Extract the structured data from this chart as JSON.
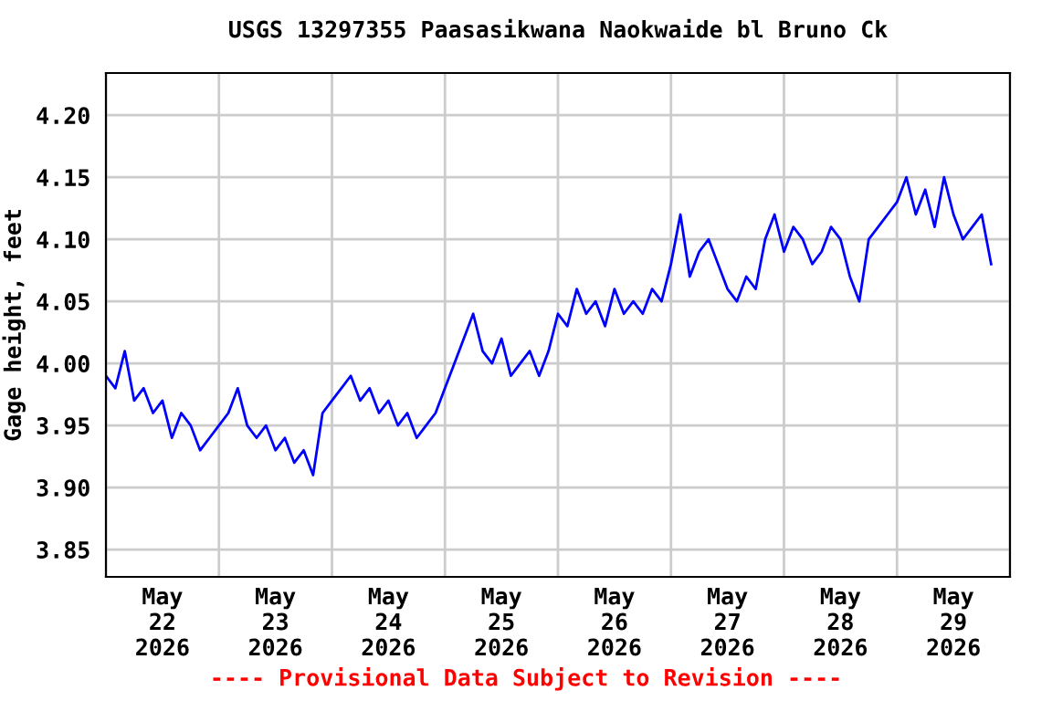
{
  "chart_data": {
    "type": "line",
    "title": "USGS 13297355 Paasasikwana Naokwaide bl Bruno Ck",
    "ylabel": "Gage height, feet",
    "annotations": [
      "---- Provisional Data Subject to Revision ----"
    ],
    "x": [
      "2026-05-22T00:00",
      "2026-05-22T02:00",
      "2026-05-22T04:00",
      "2026-05-22T06:00",
      "2026-05-22T08:00",
      "2026-05-22T10:00",
      "2026-05-22T12:00",
      "2026-05-22T14:00",
      "2026-05-22T16:00",
      "2026-05-22T18:00",
      "2026-05-22T20:00",
      "2026-05-22T22:00",
      "2026-05-23T00:00",
      "2026-05-23T02:00",
      "2026-05-23T04:00",
      "2026-05-23T06:00",
      "2026-05-23T08:00",
      "2026-05-23T10:00",
      "2026-05-23T12:00",
      "2026-05-23T14:00",
      "2026-05-23T16:00",
      "2026-05-23T18:00",
      "2026-05-23T20:00",
      "2026-05-23T22:00",
      "2026-05-24T00:00",
      "2026-05-24T02:00",
      "2026-05-24T04:00",
      "2026-05-24T06:00",
      "2026-05-24T08:00",
      "2026-05-24T10:00",
      "2026-05-24T12:00",
      "2026-05-24T14:00",
      "2026-05-24T16:00",
      "2026-05-24T18:00",
      "2026-05-24T20:00",
      "2026-05-24T22:00",
      "2026-05-25T00:00",
      "2026-05-25T02:00",
      "2026-05-25T04:00",
      "2026-05-25T06:00",
      "2026-05-25T08:00",
      "2026-05-25T10:00",
      "2026-05-25T12:00",
      "2026-05-25T14:00",
      "2026-05-25T16:00",
      "2026-05-25T18:00",
      "2026-05-25T20:00",
      "2026-05-25T22:00",
      "2026-05-26T00:00",
      "2026-05-26T02:00",
      "2026-05-26T04:00",
      "2026-05-26T06:00",
      "2026-05-26T08:00",
      "2026-05-26T10:00",
      "2026-05-26T12:00",
      "2026-05-26T14:00",
      "2026-05-26T16:00",
      "2026-05-26T18:00",
      "2026-05-26T20:00",
      "2026-05-26T22:00",
      "2026-05-27T00:00",
      "2026-05-27T02:00",
      "2026-05-27T04:00",
      "2026-05-27T06:00",
      "2026-05-27T08:00",
      "2026-05-27T10:00",
      "2026-05-27T12:00",
      "2026-05-27T14:00",
      "2026-05-27T16:00",
      "2026-05-27T18:00",
      "2026-05-27T20:00",
      "2026-05-27T22:00",
      "2026-05-28T00:00",
      "2026-05-28T02:00",
      "2026-05-28T04:00",
      "2026-05-28T06:00",
      "2026-05-28T08:00",
      "2026-05-28T10:00",
      "2026-05-28T12:00",
      "2026-05-28T14:00",
      "2026-05-28T16:00",
      "2026-05-28T18:00",
      "2026-05-28T20:00",
      "2026-05-28T22:00",
      "2026-05-29T00:00",
      "2026-05-29T02:00",
      "2026-05-29T04:00",
      "2026-05-29T06:00",
      "2026-05-29T08:00",
      "2026-05-29T10:00",
      "2026-05-29T12:00",
      "2026-05-29T14:00",
      "2026-05-29T16:00",
      "2026-05-29T18:00",
      "2026-05-29T20:00"
    ],
    "series": [
      {
        "color": "#0000ff",
        "values": [
          3.99,
          3.98,
          4.01,
          3.97,
          3.98,
          3.96,
          3.97,
          3.94,
          3.96,
          3.95,
          3.93,
          3.94,
          3.95,
          3.96,
          3.98,
          3.95,
          3.94,
          3.95,
          3.93,
          3.94,
          3.92,
          3.93,
          3.91,
          3.96,
          3.97,
          3.98,
          3.99,
          3.97,
          3.98,
          3.96,
          3.97,
          3.95,
          3.96,
          3.94,
          3.95,
          3.96,
          3.98,
          4.0,
          4.02,
          4.04,
          4.01,
          4.0,
          4.02,
          3.99,
          4.0,
          4.01,
          3.99,
          4.01,
          4.04,
          4.03,
          4.06,
          4.04,
          4.05,
          4.03,
          4.06,
          4.04,
          4.05,
          4.04,
          4.06,
          4.05,
          4.08,
          4.12,
          4.07,
          4.09,
          4.1,
          4.08,
          4.06,
          4.05,
          4.07,
          4.06,
          4.1,
          4.12,
          4.09,
          4.11,
          4.1,
          4.08,
          4.09,
          4.11,
          4.1,
          4.07,
          4.05,
          4.1,
          4.11,
          4.12,
          4.13,
          4.15,
          4.12,
          4.14,
          4.11,
          4.15,
          4.12,
          4.1,
          4.11,
          4.12,
          4.08
        ]
      }
    ],
    "xlim": [
      "2026-05-22T00:00",
      "2026-05-30T00:00"
    ],
    "xticks": [
      {
        "value": "2026-05-22T00:00",
        "label": null
      },
      {
        "value": "2026-05-22T12:00",
        "label": "May\n22\n2026"
      },
      {
        "value": "2026-05-23T00:00",
        "label": null
      },
      {
        "value": "2026-05-23T12:00",
        "label": "May\n23\n2026"
      },
      {
        "value": "2026-05-24T00:00",
        "label": null
      },
      {
        "value": "2026-05-24T12:00",
        "label": "May\n24\n2026"
      },
      {
        "value": "2026-05-25T00:00",
        "label": null
      },
      {
        "value": "2026-05-25T12:00",
        "label": "May\n25\n2026"
      },
      {
        "value": "2026-05-26T00:00",
        "label": null
      },
      {
        "value": "2026-05-26T12:00",
        "label": "May\n26\n2026"
      },
      {
        "value": "2026-05-27T00:00",
        "label": null
      },
      {
        "value": "2026-05-27T12:00",
        "label": "May\n27\n2026"
      },
      {
        "value": "2026-05-28T00:00",
        "label": null
      },
      {
        "value": "2026-05-28T12:00",
        "label": "May\n28\n2026"
      },
      {
        "value": "2026-05-29T00:00",
        "label": null
      },
      {
        "value": "2026-05-29T12:00",
        "label": "May\n29\n2026"
      },
      {
        "value": "2026-05-30T00:00",
        "label": null
      }
    ],
    "ylim": [
      3.828,
      4.234
    ],
    "yticks": [
      {
        "value": 3.85,
        "label": "3.85"
      },
      {
        "value": 3.9,
        "label": "3.90"
      },
      {
        "value": 3.95,
        "label": "3.95"
      },
      {
        "value": 4.0,
        "label": "4.00"
      },
      {
        "value": 4.05,
        "label": "4.05"
      },
      {
        "value": 4.1,
        "label": "4.10"
      },
      {
        "value": 4.15,
        "label": "4.15"
      },
      {
        "value": 4.2,
        "label": "4.20"
      }
    ],
    "grid": true,
    "marker": "none",
    "line_style": "solid"
  }
}
